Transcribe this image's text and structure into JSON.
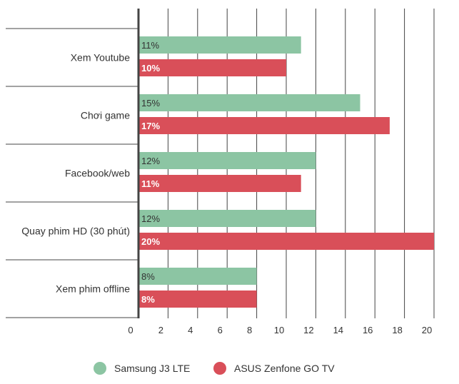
{
  "chart_data": {
    "type": "bar",
    "orientation": "horizontal",
    "title": "",
    "xlabel": "",
    "ylabel": "",
    "categories": [
      "Xem Youtube",
      "Chơi game",
      "Facebook/web",
      "Quay phim HD (30 phút)",
      "Xem phim offline"
    ],
    "series": [
      {
        "name": "Samsung J3 LTE",
        "values": [
          11,
          15,
          12,
          12,
          8
        ],
        "labels": [
          "11%",
          "15%",
          "12%",
          "12%",
          "8%"
        ],
        "color": "#8cc5a3"
      },
      {
        "name": "ASUS Zenfone GO TV",
        "values": [
          10,
          17,
          11,
          20,
          8
        ],
        "labels": [
          "10%",
          "17%",
          "11%",
          "20%",
          "8%"
        ],
        "color": "#d94f59"
      }
    ],
    "xlim": [
      0,
      20
    ],
    "xticks": [
      "0",
      "2",
      "4",
      "6",
      "8",
      "10",
      "12",
      "14",
      "16",
      "18",
      "20"
    ],
    "grid": true,
    "legend_position": "bottom"
  }
}
